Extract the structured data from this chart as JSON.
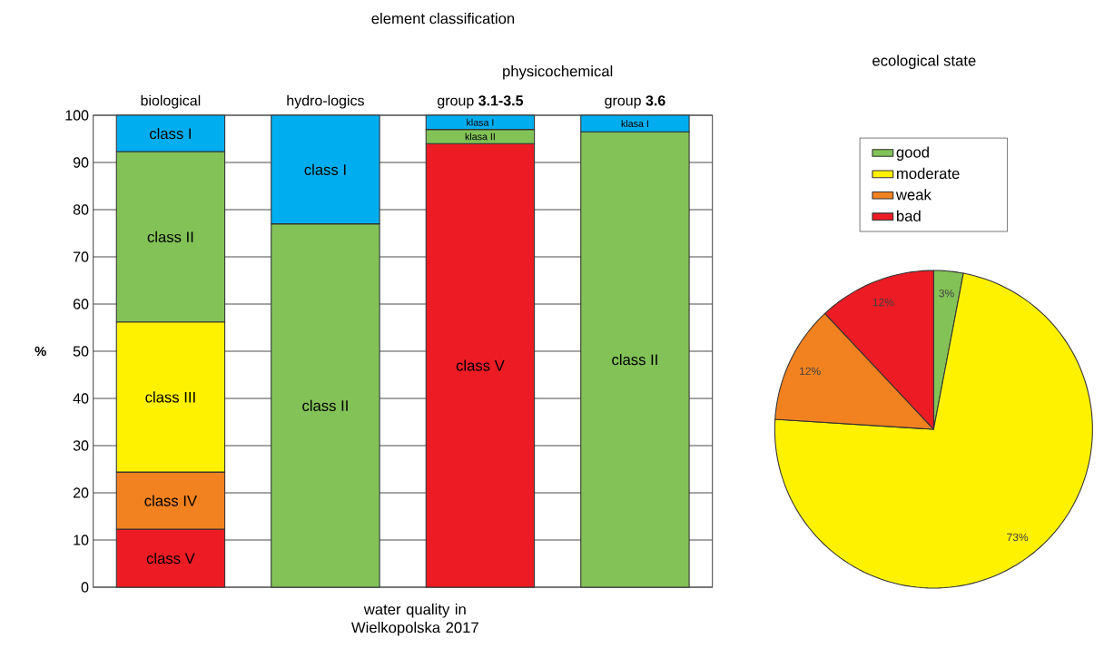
{
  "chart_data": [
    {
      "type": "bar",
      "title": "element classification",
      "xlabel": "water quality in Wielkopolska  2017",
      "ylabel": "%",
      "categories": [
        "biological",
        "hydro-logics",
        "group **3.1-3.5**",
        "group **3.6**"
      ],
      "stacked": true,
      "ylim": [
        0,
        100
      ],
      "yticks": [
        0,
        10,
        20,
        30,
        40,
        50,
        60,
        70,
        80,
        90,
        100
      ],
      "grid": "y",
      "annotations": [
        "physicochemical"
      ],
      "series": [
        {
          "color": "#ed1c24",
          "values": [
            12.3,
            null,
            94,
            null
          ],
          "value_labels": [
            "class V",
            null,
            "class V",
            null
          ]
        },
        {
          "color": "#f28220",
          "values": [
            12.1,
            null,
            null,
            null
          ],
          "value_labels": [
            "class IV",
            null,
            null,
            null
          ]
        },
        {
          "color": "#fff200",
          "values": [
            31.8,
            null,
            null,
            null
          ],
          "value_labels": [
            "class III",
            null,
            null,
            null
          ]
        },
        {
          "color": "#82c257",
          "values": [
            36.1,
            77,
            3,
            96.5
          ],
          "value_labels": [
            "class II",
            "class II",
            "klasa II",
            "class II"
          ]
        },
        {
          "color": "#00aeef",
          "values": [
            7.7,
            23,
            3,
            3.5
          ],
          "value_labels": [
            "class I",
            "class I",
            "klasa I",
            "klasa I"
          ]
        }
      ]
    },
    {
      "type": "pie",
      "title": "ecological state",
      "legend": "top",
      "categories": [
        "good",
        "moderate",
        "weak",
        "bad"
      ],
      "values": [
        3,
        73,
        12,
        12
      ],
      "colors": [
        "#82c257",
        "#fff200",
        "#f28220",
        "#ed1c24"
      ],
      "value_labels": [
        "3%",
        "73%",
        "12%",
        "12%"
      ]
    }
  ]
}
